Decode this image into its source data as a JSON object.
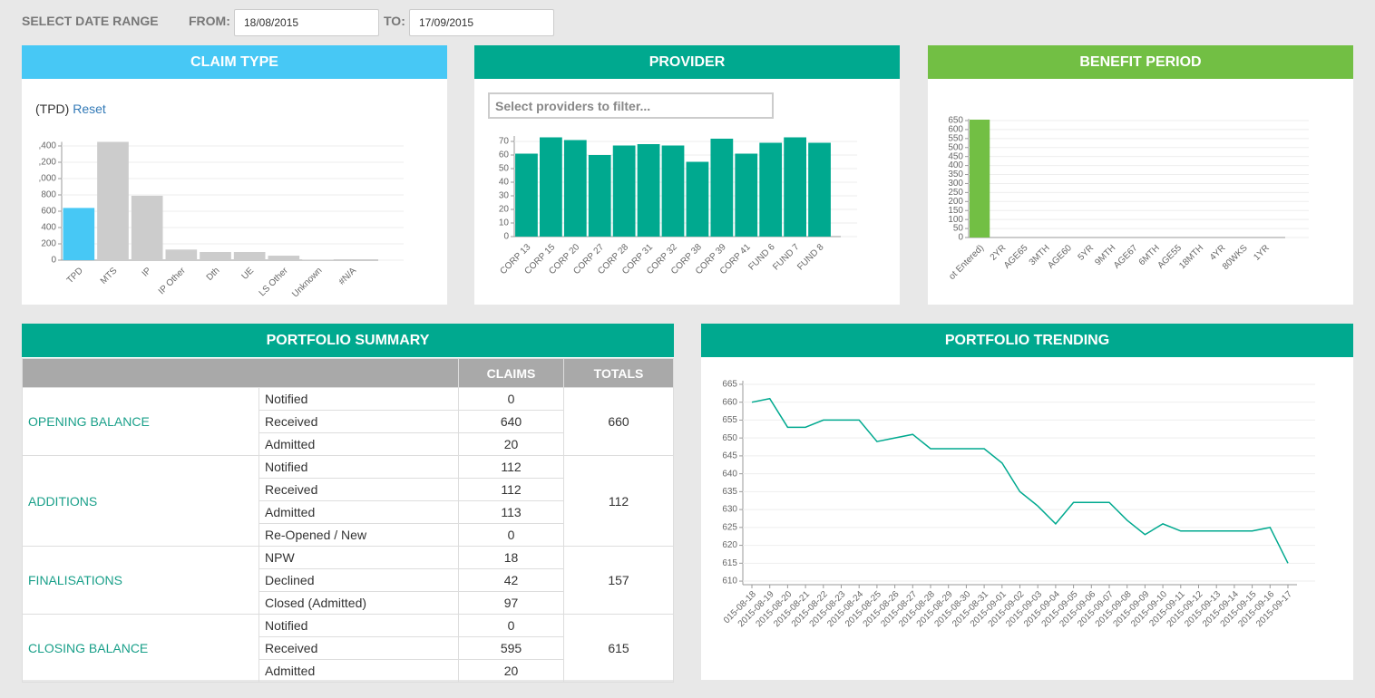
{
  "header": {
    "title": "SELECT DATE RANGE",
    "from_label": "FROM:",
    "from": "18/08/2015",
    "to_label": "TO:",
    "to": "17/09/2015"
  },
  "chart_data": [
    {
      "type": "bar",
      "title": "CLAIM TYPE",
      "filter": "(TPD)",
      "reset": "Reset",
      "categories": [
        "TPD",
        "MTS",
        "IP",
        "IP Other",
        "Dth",
        "UE",
        "LS Other",
        "Unknown",
        "#N/A"
      ],
      "values": [
        640,
        1450,
        790,
        130,
        100,
        100,
        55,
        5,
        0
      ],
      "colors": [
        "#47c8f5",
        "#cccccc",
        "#cccccc",
        "#cccccc",
        "#cccccc",
        "#cccccc",
        "#cccccc",
        "#cccccc",
        "#cccccc"
      ],
      "ylim": [
        0,
        1450
      ],
      "yticks": [
        0,
        200,
        400,
        600,
        {
          "value": 800,
          "label": "800"
        },
        {
          "value": 1000,
          "label": ",000"
        },
        {
          "value": 1200,
          "label": ",200"
        },
        {
          "value": 1400,
          "label": ",400"
        }
      ],
      "grid": true
    },
    {
      "type": "bar",
      "title": "PROVIDER",
      "filter_placeholder": "Select providers to filter...",
      "categories": [
        "CORP 13",
        "CORP 15",
        "CORP 20",
        "CORP 27",
        "CORP 28",
        "CORP 31",
        "CORP 32",
        "CORP 38",
        "CORP 39",
        "CORP 41",
        "FUND 6",
        "FUND 7",
        "FUND 8"
      ],
      "values": [
        61,
        73,
        71,
        60,
        67,
        68,
        67,
        55,
        72,
        61,
        69,
        73,
        69
      ],
      "color": "#00a98f",
      "ylim": [
        0,
        74
      ],
      "yticks": [
        0,
        10,
        20,
        30,
        40,
        50,
        60,
        70
      ],
      "grid": true
    },
    {
      "type": "bar",
      "title": "BENEFIT PERIOD",
      "categories": [
        "ot Entered)",
        "2YR",
        "AGE65",
        "3MTH",
        "AGE60",
        "5YR",
        "9MTH",
        "AGE67",
        "6MTH",
        "AGE55",
        "18MTH",
        "4YR",
        "80WKS",
        "1YR"
      ],
      "values": [
        655,
        0,
        0,
        0,
        0,
        0,
        0,
        0,
        0,
        0,
        0,
        0,
        0,
        0
      ],
      "color": "#72bf44",
      "ylim": [
        0,
        660
      ],
      "yticks": [
        0,
        50,
        100,
        150,
        200,
        250,
        300,
        350,
        400,
        450,
        500,
        550,
        600,
        650
      ],
      "grid": true
    },
    {
      "type": "line",
      "title": "PORTFOLIO TRENDING",
      "categories": [
        "015-08-18",
        "2015-08-19",
        "2015-08-20",
        "2015-08-21",
        "2015-08-22",
        "2015-08-23",
        "2015-08-24",
        "2015-08-25",
        "2015-08-26",
        "2015-08-27",
        "2015-08-28",
        "2015-08-29",
        "2015-08-30",
        "2015-08-31",
        "2015-09-01",
        "2015-09-02",
        "2015-09-03",
        "2015-09-04",
        "2015-09-05",
        "2015-09-06",
        "2015-09-07",
        "2015-09-08",
        "2015-09-09",
        "2015-09-10",
        "2015-09-11",
        "2015-09-12",
        "2015-09-13",
        "2015-09-14",
        "2015-09-15",
        "2015-09-16",
        "2015-09-17"
      ],
      "values": [
        660,
        661,
        653,
        653,
        655,
        655,
        655,
        649,
        650,
        651,
        647,
        647,
        647,
        647,
        643,
        635,
        631,
        626,
        632,
        632,
        632,
        627,
        623,
        626,
        624,
        624,
        624,
        624,
        624,
        625,
        615
      ],
      "color": "#00a98f",
      "ylim": [
        609,
        666
      ],
      "yticks": [
        610,
        615,
        620,
        625,
        630,
        635,
        640,
        645,
        650,
        655,
        660,
        665
      ],
      "grid": true
    }
  ],
  "table": {
    "title": "PORTFOLIO SUMMARY",
    "columns": [
      "CLAIMS",
      "TOTALS"
    ],
    "sections": [
      {
        "label": "OPENING BALANCE",
        "rows": [
          [
            "Notified",
            "0"
          ],
          [
            "Received",
            "640"
          ],
          [
            "Admitted",
            "20"
          ]
        ],
        "total": "660"
      },
      {
        "label": "ADDITIONS",
        "rows": [
          [
            "Notified",
            "112"
          ],
          [
            "Received",
            "112"
          ],
          [
            "Admitted",
            "113"
          ],
          [
            "Re-Opened / New",
            "0"
          ]
        ],
        "total": "112"
      },
      {
        "label": "FINALISATIONS",
        "rows": [
          [
            "NPW",
            "18"
          ],
          [
            "Declined",
            "42"
          ],
          [
            "Closed (Admitted)",
            "97"
          ]
        ],
        "total": "157"
      },
      {
        "label": "CLOSING BALANCE",
        "rows": [
          [
            "Notified",
            "0"
          ],
          [
            "Received",
            "595"
          ],
          [
            "Admitted",
            "20"
          ]
        ],
        "total": "615"
      }
    ]
  }
}
